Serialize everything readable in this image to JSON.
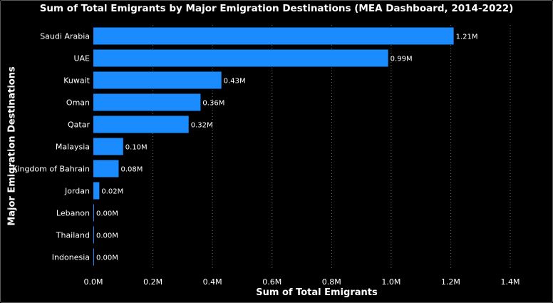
{
  "chart_data": {
    "type": "bar",
    "orientation": "horizontal",
    "title": "Sum of Total Emigrants by Major Emigration Destinations (MEA Dashboard, 2014-2022)",
    "xlabel": "Sum of Total Emigrants",
    "ylabel": "Major Emigration Destinations",
    "categories": [
      "Saudi Arabia",
      "UAE",
      "Kuwait",
      "Oman",
      "Qatar",
      "Malaysia",
      "Kingdom of Bahrain",
      "Jordan",
      "Lebanon",
      "Thailand",
      "Indonesia"
    ],
    "values": [
      1210000,
      990000,
      430000,
      360000,
      320000,
      100000,
      85000,
      20000,
      1500,
      1000,
      800
    ],
    "data_labels": [
      "1.21M",
      "0.99M",
      "0.43M",
      "0.36M",
      "0.32M",
      "0.10M",
      "0.08M",
      "0.02M",
      "0.00M",
      "0.00M",
      "0.00M"
    ],
    "xlim": [
      0,
      1400000
    ],
    "xticks": [
      0,
      200000,
      400000,
      600000,
      800000,
      1000000,
      1200000,
      1400000
    ],
    "xtick_labels": [
      "0.0M",
      "0.2M",
      "0.4M",
      "0.6M",
      "0.8M",
      "1.0M",
      "1.2M",
      "1.4M"
    ],
    "grid": "vertical dotted",
    "bar_color": "#1a8cff",
    "background_color": "#000000",
    "text_color": "#ffffff"
  }
}
